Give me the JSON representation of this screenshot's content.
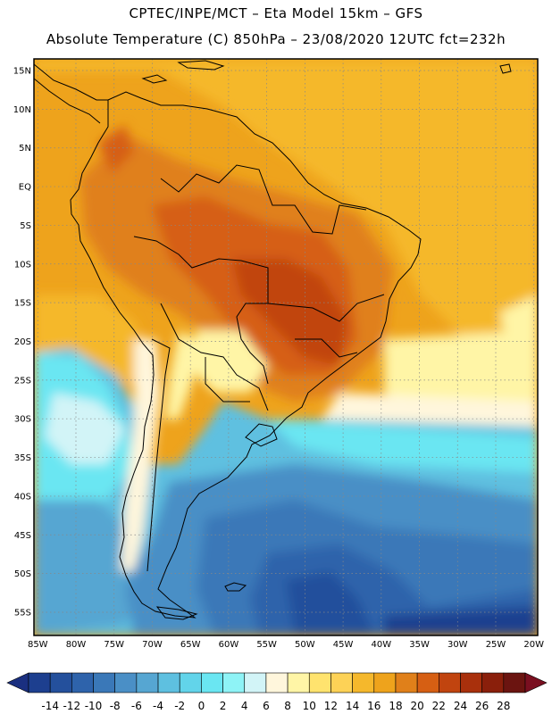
{
  "header": {
    "line1": "CPTEC/INPE/MCT –  Eta Model 15km – GFS",
    "line2": "Absolute Temperature (C) 850hPa – 23/08/2020 12UTC fct=232h"
  },
  "map": {
    "lat_labels": [
      "15N",
      "10N",
      "5N",
      "EQ",
      "5S",
      "10S",
      "15S",
      "20S",
      "25S",
      "30S",
      "35S",
      "40S",
      "45S",
      "50S",
      "55S"
    ],
    "lat_values": [
      15,
      10,
      5,
      0,
      -5,
      -10,
      -15,
      -20,
      -25,
      -30,
      -35,
      -40,
      -45,
      -50,
      -55
    ],
    "lon_labels": [
      "85W",
      "80W",
      "75W",
      "70W",
      "65W",
      "60W",
      "55W",
      "50W",
      "45W",
      "40W",
      "35W",
      "30W",
      "25W",
      "20W"
    ],
    "lon_values": [
      -85,
      -80,
      -75,
      -70,
      -65,
      -60,
      -55,
      -50,
      -45,
      -40,
      -35,
      -30,
      -25,
      -20
    ],
    "extent": {
      "lon_min": -85.5,
      "lon_max": -19.5,
      "lat_min": -58,
      "lat_max": 16.5
    }
  },
  "colorbar": {
    "labels": [
      "-14",
      "-12",
      "-10",
      "-8",
      "-6",
      "-4",
      "-2",
      "0",
      "2",
      "4",
      "6",
      "8",
      "10",
      "12",
      "14",
      "16",
      "18",
      "20",
      "22",
      "24",
      "26",
      "28"
    ],
    "colors": [
      "#1d3f8f",
      "#24509c",
      "#2e63ab",
      "#3a78b8",
      "#4a8fc6",
      "#56a6d2",
      "#5ec0e0",
      "#62d4ea",
      "#6ae6f2",
      "#8ef3f6",
      "#d2f4f7",
      "#fff6dc",
      "#fff5a6",
      "#ffe36e",
      "#fdd256",
      "#f5b82c",
      "#eea31c",
      "#e0801a",
      "#d65f13",
      "#c1440f",
      "#a9300c",
      "#8a1f0b",
      "#6b1410"
    ],
    "under_color": "#1a2f80",
    "over_color": "#7a0f20"
  }
}
